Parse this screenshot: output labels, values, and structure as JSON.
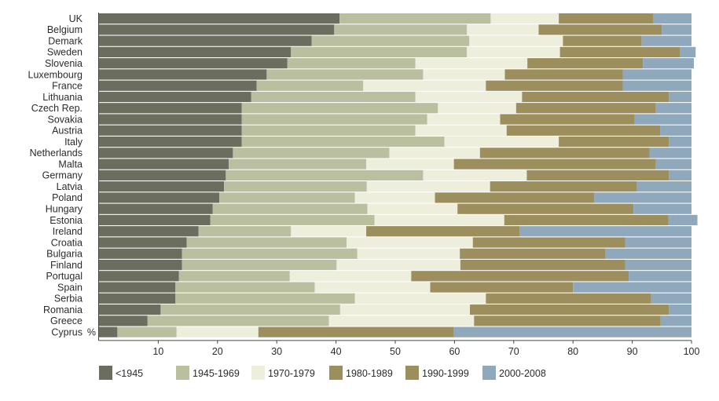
{
  "chart_data": {
    "type": "bar",
    "orientation": "horizontal",
    "stacked": true,
    "unit_label": "%",
    "xlim": [
      0,
      100
    ],
    "x_ticks": [
      10,
      20,
      30,
      40,
      50,
      60,
      70,
      80,
      90,
      100
    ],
    "legend_position": "bottom",
    "grid": false,
    "categories": [
      "UK",
      "Belgium",
      "Demark",
      "Sweden",
      "Slovenia",
      "Luxembourg",
      "France",
      "Lithuania",
      "Czech Rep.",
      "Sovakia",
      "Austria",
      "Italy",
      "Netherlands",
      "Malta",
      "Germany",
      "Latvia",
      "Poland",
      "Hungary",
      "Estonia",
      "Ireland",
      "Croatia",
      "Bulgaria",
      "Finland",
      "Portugal",
      "Spain",
      "Serbia",
      "Romania",
      "Greece",
      "Cyprus"
    ],
    "series": [
      {
        "name": "<1945",
        "color": "#6b6e5f",
        "values": [
          40.6,
          39.7,
          35.9,
          32.4,
          31.8,
          28.3,
          26.6,
          25.7,
          24.1,
          24.1,
          24.1,
          24.1,
          22.6,
          21.9,
          21.4,
          21.1,
          20.3,
          19.2,
          18.8,
          16.8,
          14.8,
          14.0,
          14.0,
          13.5,
          12.9,
          12.9,
          10.4,
          8.2,
          3.1
        ]
      },
      {
        "name": "1945-1969",
        "color": "#babfa0",
        "values": [
          25.5,
          22.4,
          26.6,
          29.7,
          21.6,
          26.4,
          18.0,
          27.7,
          33.1,
          31.3,
          29.3,
          34.2,
          26.4,
          23.2,
          33.3,
          24.1,
          22.9,
          26.1,
          27.7,
          15.6,
          27.0,
          29.6,
          26.1,
          18.7,
          23.5,
          30.3,
          30.3,
          30.6,
          10.0
        ]
      },
      {
        "name": "1970-1979",
        "color": "#edeedb",
        "values": [
          11.5,
          12.1,
          15.8,
          15.7,
          18.9,
          13.8,
          20.7,
          18.0,
          13.2,
          12.3,
          15.4,
          19.3,
          15.3,
          14.8,
          17.5,
          20.8,
          13.5,
          15.2,
          21.9,
          12.7,
          21.3,
          17.3,
          20.9,
          20.5,
          19.5,
          22.1,
          21.9,
          24.5,
          13.8
        ]
      },
      {
        "name": "1980-1989",
        "color": "#9c8f5d",
        "values": [
          15.9,
          20.8,
          13.3,
          20.3,
          19.5,
          19.9,
          23.1,
          24.8,
          23.6,
          22.7,
          25.9,
          18.6,
          28.6,
          34.1,
          24.0,
          24.8,
          26.9,
          29.7,
          27.7,
          25.9,
          25.7,
          24.6,
          27.8,
          36.7,
          24.1,
          27.9,
          33.6,
          31.5,
          33.0
        ]
      },
      {
        "name": "1990-1999",
        "color": "#9c8f5d",
        "values": [
          0,
          0,
          0,
          0,
          0,
          0,
          0,
          0,
          0,
          0,
          0,
          0,
          0,
          0,
          0,
          0,
          0,
          0,
          0,
          0,
          0,
          0,
          0,
          0,
          0,
          0,
          0,
          0,
          0
        ]
      },
      {
        "name": "2000-2008",
        "color": "#8fa8bc",
        "values": [
          6.5,
          5.0,
          8.4,
          2.6,
          8.6,
          11.6,
          11.6,
          3.8,
          6.0,
          9.6,
          5.3,
          3.8,
          7.1,
          6.0,
          3.8,
          9.2,
          16.4,
          9.8,
          4.9,
          29.0,
          11.2,
          14.5,
          11.2,
          10.6,
          20.0,
          6.8,
          3.8,
          5.2,
          40.1
        ]
      }
    ]
  }
}
